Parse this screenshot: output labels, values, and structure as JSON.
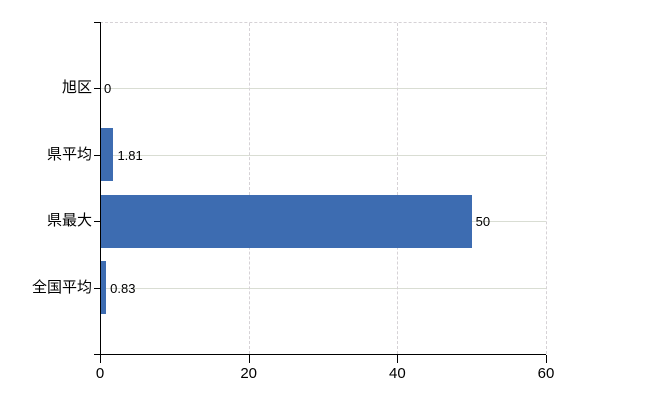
{
  "chart_data": {
    "type": "bar",
    "orientation": "horizontal",
    "title": "",
    "xlabel": "",
    "ylabel": "",
    "categories": [
      "旭区",
      "県平均",
      "県最大",
      "全国平均"
    ],
    "values": [
      0,
      1.81,
      50,
      0.83
    ],
    "value_labels": [
      "0",
      "1.81",
      "50",
      "0.83"
    ],
    "xlim": [
      0,
      60
    ],
    "x_tick_labels": [
      "0",
      "20",
      "40",
      "60"
    ],
    "x_tick_values": [
      0,
      20,
      40,
      60
    ],
    "grid": true,
    "legend": false,
    "colors": {
      "bar": "#3d6cb1",
      "axis": "#000000",
      "text": "#000000",
      "gridline_solid": "#d9ddd3",
      "gridline_dashed": "#d6d2d6",
      "background": "#ffffff"
    }
  }
}
